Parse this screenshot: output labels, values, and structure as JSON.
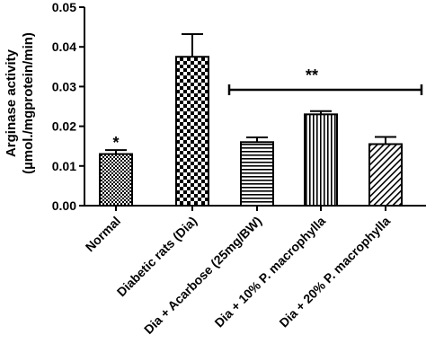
{
  "chart_data": {
    "type": "bar",
    "categories": [
      "Normal",
      "Diabetic rats (Dia)",
      "Dia + Acarbose (25mg/BW)",
      "Dia + 10% P. macrophylla",
      "Dia + 20% P. macrophylla"
    ],
    "values": [
      0.013,
      0.0375,
      0.016,
      0.023,
      0.0155
    ],
    "errors": [
      0.001,
      0.0057,
      0.0012,
      0.0008,
      0.0018
    ],
    "patterns": [
      "fine-check",
      "large-check",
      "horizontal",
      "vertical",
      "diagonal"
    ],
    "ylabel_line1": "Arginase activity",
    "ylabel_line2": "(µmol./mgprotein/min)",
    "xlabel": "",
    "title": "",
    "ylim": [
      0,
      0.05
    ],
    "yticks": [
      "0.00",
      "0.01",
      "0.02",
      "0.03",
      "0.04",
      "0.05"
    ],
    "annotations": {
      "normal_marker": "*",
      "bracket_marker": "**"
    },
    "grid": false,
    "colors": {
      "bar": "#000000",
      "background": "#ffffff"
    }
  }
}
